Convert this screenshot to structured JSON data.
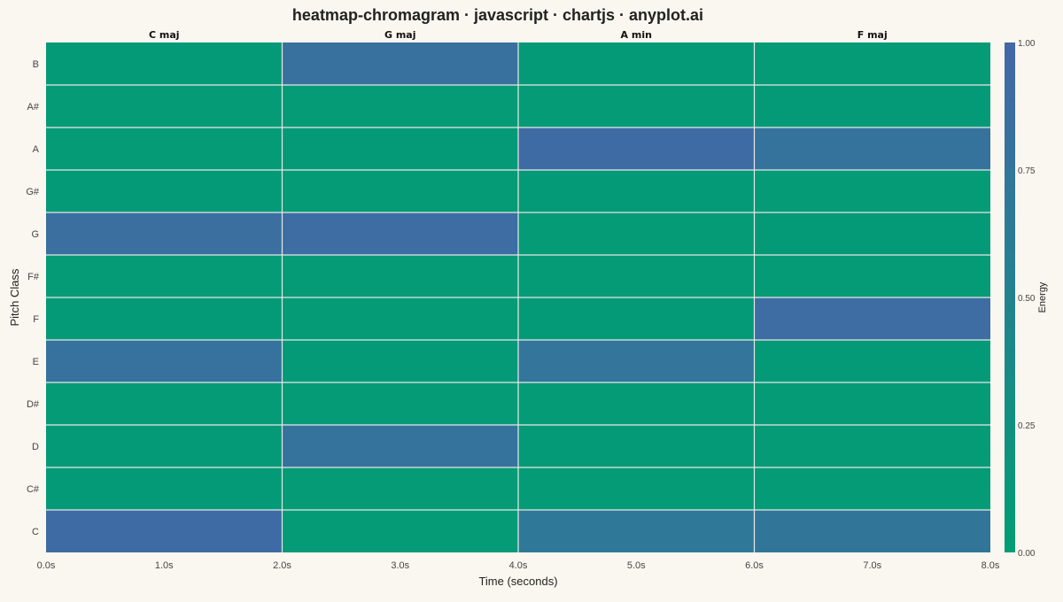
{
  "chart_data": {
    "type": "heatmap",
    "title": "heatmap-chromagram · javascript · chartjs · anyplot.ai",
    "xlabel": "Time (seconds)",
    "ylabel": "Pitch Class",
    "colorbar_label": "Energy",
    "xlim": [
      0,
      8
    ],
    "x_ticks": [
      "0.0s",
      "1.0s",
      "2.0s",
      "3.0s",
      "4.0s",
      "5.0s",
      "6.0s",
      "7.0s",
      "8.0s"
    ],
    "y_categories": [
      "C",
      "C#",
      "D",
      "D#",
      "E",
      "F",
      "F#",
      "G",
      "G#",
      "A",
      "A#",
      "B"
    ],
    "segments": [
      {
        "label": "C maj",
        "start": 0,
        "end": 2,
        "energy": [
          0.93,
          0.08,
          0.08,
          0.06,
          0.8,
          0.07,
          0.06,
          0.85,
          0.07,
          0.06,
          0.06,
          0.07
        ]
      },
      {
        "label": "G maj",
        "start": 2,
        "end": 4,
        "energy": [
          0.06,
          0.06,
          0.78,
          0.06,
          0.07,
          0.06,
          0.06,
          0.9,
          0.06,
          0.07,
          0.06,
          0.82
        ]
      },
      {
        "label": "A min",
        "start": 4,
        "end": 6,
        "energy": [
          0.7,
          0.06,
          0.07,
          0.06,
          0.75,
          0.07,
          0.06,
          0.06,
          0.07,
          0.92,
          0.06,
          0.07
        ]
      },
      {
        "label": "F maj",
        "start": 6,
        "end": 8,
        "energy": [
          0.72,
          0.06,
          0.06,
          0.06,
          0.07,
          0.9,
          0.06,
          0.07,
          0.06,
          0.78,
          0.07,
          0.06
        ]
      }
    ],
    "colorbar_ticks": [
      "0.00",
      "0.25",
      "0.50",
      "0.75",
      "1.00"
    ],
    "color_scale": {
      "low": "#009E73",
      "high": "#4467A8"
    },
    "grid": true
  }
}
